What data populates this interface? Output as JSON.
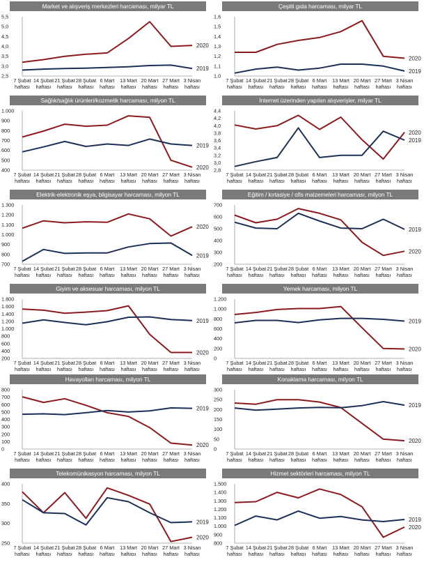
{
  "colors": {
    "series_2020": "#8b1a1f",
    "series_2019": "#1c2f56",
    "title_bg": "#7a7a7a"
  },
  "chart_data": [
    {
      "type": "line",
      "title": "Market ve alışveriş merkezleri harcaması, milyar TL",
      "categories": [
        "7 Şubat haftası",
        "14 Şubat haftası",
        "21 Şubat haftası",
        "28 Şubat haftası",
        "6 Mart haftası",
        "13 Mart haftası",
        "20 Mart haftası",
        "27 Mart haftası",
        "3 Nisan haftası"
      ],
      "ylim": [
        2.5,
        5.5
      ],
      "yticks": [
        "2,5",
        "3,0",
        "3,5",
        "4,0",
        "4,5",
        "5,0",
        "5,5"
      ],
      "ytick_values": [
        2.5,
        3.0,
        3.5,
        4.0,
        4.5,
        5.0,
        5.5
      ],
      "series": [
        {
          "name": "2020",
          "values": [
            3.2,
            3.33,
            3.5,
            3.6,
            3.67,
            4.4,
            5.25,
            4.0,
            4.05
          ]
        },
        {
          "name": "2019",
          "values": [
            2.8,
            2.85,
            2.88,
            2.9,
            2.93,
            2.97,
            3.03,
            3.05,
            2.88
          ]
        }
      ]
    },
    {
      "type": "line",
      "title": "Çeşitli gıda harcaması, milyar TL",
      "categories": [
        "7 Şubat haftası",
        "14 Şubat haftası",
        "21 Şubat haftası",
        "28 Şubat haftası",
        "6 Mart haftası",
        "13 Mart haftası",
        "20 Mart haftası",
        "27 Mart haftası",
        "3 Nisan haftası"
      ],
      "ylim": [
        1.0,
        1.6
      ],
      "yticks": [
        "1,0",
        "1,1",
        "1,2",
        "1,3",
        "1,4",
        "1,5",
        "1,6"
      ],
      "ytick_values": [
        1.0,
        1.1,
        1.2,
        1.3,
        1.4,
        1.5,
        1.6
      ],
      "series": [
        {
          "name": "2020",
          "values": [
            1.24,
            1.24,
            1.32,
            1.36,
            1.39,
            1.45,
            1.56,
            1.2,
            1.18
          ]
        },
        {
          "name": "2019",
          "values": [
            1.03,
            1.07,
            1.09,
            1.06,
            1.08,
            1.12,
            1.12,
            1.1,
            1.05
          ]
        }
      ]
    },
    {
      "type": "line",
      "title": "Sağlık/sağlık ürünleri/kozmetik harcaması, milyon TL",
      "categories": [
        "7 Şubat haftası",
        "14 Şubat haftası",
        "21 Şubat haftası",
        "28 Şubat haftası",
        "6 Mart haftası",
        "13 Mart haftası",
        "20 Mart haftası",
        "27 Mart haftası",
        "3 Nisan haftası"
      ],
      "ylim": [
        400,
        1000
      ],
      "yticks": [
        "400",
        "500",
        "600",
        "700",
        "800",
        "900",
        "1.000"
      ],
      "ytick_values": [
        400,
        500,
        600,
        700,
        800,
        900,
        1000
      ],
      "series": [
        {
          "name": "2020",
          "values": [
            735,
            795,
            865,
            845,
            855,
            950,
            935,
            500,
            430
          ]
        },
        {
          "name": "2019",
          "values": [
            585,
            635,
            690,
            640,
            665,
            650,
            715,
            665,
            650
          ]
        }
      ]
    },
    {
      "type": "line",
      "title": "İnternet üzerinden yapılan alışverişler, milyar TL",
      "categories": [
        "7 Şubat haftası",
        "14 Şubat haftası",
        "21 Şubat haftası",
        "28 Şubat haftası",
        "6 Mart haftası",
        "13 Mart haftası",
        "20 Mart haftası",
        "27 Mart haftası",
        "3 Nisan haftası"
      ],
      "ylim": [
        2.8,
        4.4
      ],
      "yticks": [
        "2,8",
        "3,0",
        "3,2",
        "3,4",
        "3,6",
        "3,8",
        "4,0",
        "4,2",
        "4,4"
      ],
      "ytick_values": [
        2.8,
        3.0,
        3.2,
        3.4,
        3.6,
        3.8,
        4.0,
        4.2,
        4.4
      ],
      "series": [
        {
          "name": "2020",
          "values": [
            4.02,
            3.91,
            4.0,
            4.28,
            3.9,
            4.23,
            3.62,
            3.1,
            3.82
          ]
        },
        {
          "name": "2019",
          "values": [
            2.9,
            3.03,
            3.14,
            3.94,
            3.14,
            3.2,
            3.2,
            3.85,
            3.61
          ]
        }
      ]
    },
    {
      "type": "line",
      "title": "Elektrik-elektronik eşya, bilgisayar harcaması, milyon TL",
      "categories": [
        "7 Şubat haftası",
        "14 Şubat haftası",
        "21 Şubat haftası",
        "28 Şubat haftası",
        "6 Mart haftası",
        "13 Mart haftası",
        "20 Mart haftası",
        "27 Mart haftası",
        "3 Nisan haftası"
      ],
      "ylim": [
        700,
        1300
      ],
      "yticks": [
        "700",
        "800",
        "900",
        "1.000",
        "1.100",
        "1.200",
        "1.300"
      ],
      "ytick_values": [
        700,
        800,
        900,
        1000,
        1100,
        1200,
        1300
      ],
      "series": [
        {
          "name": "2020",
          "values": [
            1065,
            1140,
            1120,
            1130,
            1125,
            1210,
            1160,
            985,
            1080
          ]
        },
        {
          "name": "2019",
          "values": [
            730,
            850,
            810,
            815,
            815,
            875,
            910,
            915,
            790
          ]
        }
      ]
    },
    {
      "type": "line",
      "title": "Eğitim / kırtasiye / ofis malzemeleri harcaması, milyon TL",
      "categories": [
        "7 Şubat haftası",
        "14 Şubat haftası",
        "21 Şubat haftası",
        "28 Şubat haftası",
        "6 Mart haftası",
        "13 Mart haftası",
        "20 Mart haftası",
        "27 Mart haftası",
        "3 Nisan haftası"
      ],
      "ylim": [
        200,
        700
      ],
      "yticks": [
        "200",
        "300",
        "400",
        "500",
        "600",
        "700"
      ],
      "ytick_values": [
        200,
        300,
        400,
        500,
        600,
        700
      ],
      "series": [
        {
          "name": "2020",
          "values": [
            615,
            550,
            580,
            670,
            630,
            575,
            385,
            275,
            310
          ]
        },
        {
          "name": "2019",
          "values": [
            555,
            505,
            500,
            630,
            565,
            505,
            500,
            580,
            495
          ]
        }
      ]
    },
    {
      "type": "line",
      "title": "Giyim ve aksesuar harcaması, milyon TL",
      "categories": [
        "7 Şubat haftası",
        "14 Şubat haftası",
        "21 Şubat haftası",
        "28 Şubat haftası",
        "6 Mart haftası",
        "13 Mart haftası",
        "20 Mart haftası",
        "27 Mart haftası",
        "3 Nisan haftası"
      ],
      "ylim": [
        200,
        1800
      ],
      "yticks": [
        "200",
        "400",
        "600",
        "800",
        "1.000",
        "1.200",
        "1.400",
        "1.600",
        "1.800"
      ],
      "ytick_values": [
        200,
        400,
        600,
        800,
        1000,
        1200,
        1400,
        1600,
        1800
      ],
      "series": [
        {
          "name": "2020",
          "values": [
            1530,
            1500,
            1420,
            1450,
            1490,
            1620,
            850,
            360,
            360
          ]
        },
        {
          "name": "2019",
          "values": [
            1150,
            1240,
            1170,
            1110,
            1190,
            1310,
            1320,
            1250,
            1220
          ]
        }
      ]
    },
    {
      "type": "line",
      "title": "Yemek harcaması, milyon TL",
      "categories": [
        "7 Şubat haftası",
        "14 Şubat haftası",
        "21 Şubat haftası",
        "28 Şubat haftası",
        "6 Mart haftası",
        "13 Mart haftası",
        "20 Mart haftası",
        "27 Mart haftası",
        "3 Nisan haftası"
      ],
      "ylim": [
        0,
        1200
      ],
      "yticks": [
        "0",
        "200",
        "400",
        "600",
        "800",
        "1.000",
        "1.200"
      ],
      "ytick_values": [
        0,
        200,
        400,
        600,
        800,
        1000,
        1200
      ],
      "series": [
        {
          "name": "2020",
          "values": [
            890,
            930,
            990,
            1010,
            1010,
            1050,
            620,
            200,
            190
          ]
        },
        {
          "name": "2019",
          "values": [
            720,
            770,
            770,
            725,
            780,
            810,
            810,
            790,
            755
          ]
        }
      ]
    },
    {
      "type": "line",
      "title": "Havayolları harcaması, milyon TL",
      "categories": [
        "7 Şubat haftası",
        "14 Şubat haftası",
        "21 Şubat haftası",
        "28 Şubat haftası",
        "6 Mart haftası",
        "13 Mart haftası",
        "20 Mart haftası",
        "27 Mart haftası",
        "3 Nisan haftası"
      ],
      "ylim": [
        0,
        800
      ],
      "yticks": [
        "0",
        "100",
        "200",
        "300",
        "400",
        "500",
        "600",
        "700",
        "800"
      ],
      "ytick_values": [
        0,
        100,
        200,
        300,
        400,
        500,
        600,
        700,
        800
      ],
      "series": [
        {
          "name": "2020",
          "values": [
            705,
            630,
            680,
            590,
            490,
            440,
            290,
            80,
            55
          ]
        },
        {
          "name": "2019",
          "values": [
            470,
            475,
            465,
            490,
            520,
            500,
            515,
            555,
            550
          ]
        }
      ]
    },
    {
      "type": "line",
      "title": "Konaklama harcaması, milyon TL",
      "categories": [
        "7 Şubat haftası",
        "14 Şubat haftası",
        "21 Şubat haftası",
        "28 Şubat haftası",
        "6 Mart haftası",
        "13 Mart haftası",
        "20 Mart haftası",
        "27 Mart haftası",
        "3 Nisan haftası"
      ],
      "ylim": [
        0,
        300
      ],
      "yticks": [
        "0",
        "50",
        "100",
        "150",
        "200",
        "250",
        "300"
      ],
      "ytick_values": [
        0,
        50,
        100,
        150,
        200,
        250,
        300
      ],
      "series": [
        {
          "name": "2020",
          "values": [
            233,
            227,
            250,
            250,
            238,
            210,
            130,
            50,
            42
          ]
        },
        {
          "name": "2019",
          "values": [
            208,
            197,
            202,
            208,
            211,
            209,
            220,
            240,
            222
          ]
        }
      ]
    },
    {
      "type": "line",
      "title": "Telekomünikasyon harcaması, milyon TL",
      "categories": [
        "7 Şubat haftası",
        "14 Şubat haftası",
        "21 Şubat haftası",
        "28 Şubat haftası",
        "6 Mart haftası",
        "13 Mart haftası",
        "20 Mart haftası",
        "27 Mart haftası",
        "3 Nisan haftası"
      ],
      "ylim": [
        250,
        400
      ],
      "yticks": [
        "250",
        "300",
        "350",
        "400"
      ],
      "ytick_values": [
        250,
        300,
        350,
        400
      ],
      "series": [
        {
          "name": "2020",
          "values": [
            380,
            327,
            378,
            313,
            390,
            371,
            349,
            254,
            265
          ]
        },
        {
          "name": "2019",
          "values": [
            360,
            327,
            325,
            296,
            365,
            355,
            327,
            302,
            304
          ]
        }
      ]
    },
    {
      "type": "line",
      "title": "Hizmet sektörleri harcaması, milyon TL",
      "categories": [
        "7 Şubat haftası",
        "14 Şubat haftası",
        "21 Şubat haftası",
        "28 Şubat haftası",
        "6 Mart haftası",
        "13 Mart haftası",
        "20 Mart haftası",
        "27 Mart haftası",
        "3 Nisan haftası"
      ],
      "ylim": [
        800,
        1500
      ],
      "yticks": [
        "800",
        "900",
        "1.000",
        "1.100",
        "1.200",
        "1.300",
        "1.400",
        "1.500"
      ],
      "ytick_values": [
        800,
        900,
        1000,
        1100,
        1200,
        1300,
        1400,
        1500
      ],
      "series": [
        {
          "name": "2020",
          "values": [
            1280,
            1290,
            1400,
            1335,
            1440,
            1375,
            1230,
            870,
            990
          ]
        },
        {
          "name": "2019",
          "values": [
            1010,
            1120,
            1075,
            1180,
            1095,
            1115,
            1075,
            1055,
            1080
          ]
        }
      ]
    }
  ]
}
